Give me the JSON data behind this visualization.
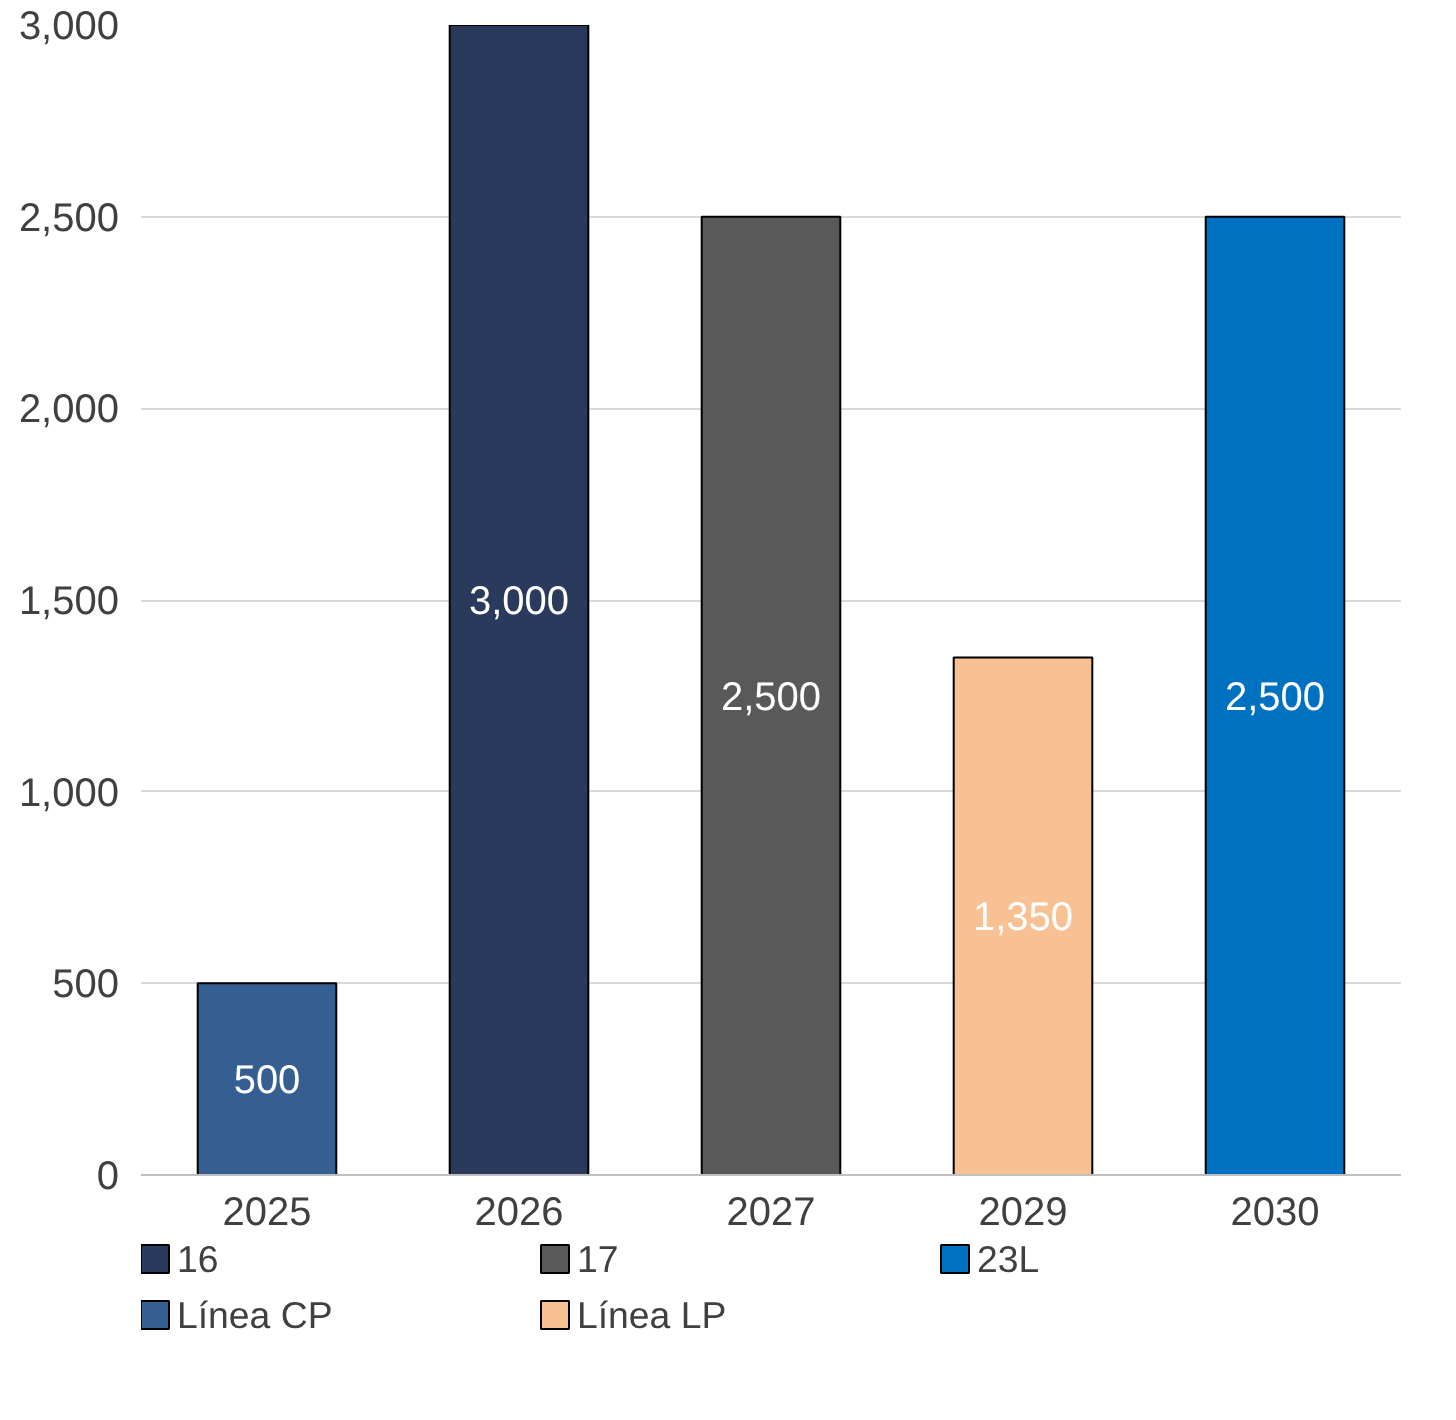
{
  "chart_data": {
    "type": "bar",
    "categories": [
      "2025",
      "2026",
      "2027",
      "2029",
      "2030"
    ],
    "series": [
      {
        "name": "16",
        "color": "#2a3a5c",
        "values": [
          null,
          3000,
          null,
          null,
          null
        ]
      },
      {
        "name": "17",
        "color": "#595959",
        "values": [
          null,
          null,
          2500,
          null,
          null
        ]
      },
      {
        "name": "23L",
        "color": "#0070c0",
        "values": [
          null,
          null,
          null,
          null,
          2500
        ]
      },
      {
        "name": "Línea CP",
        "color": "#355f91",
        "values": [
          500,
          null,
          null,
          null,
          null
        ]
      },
      {
        "name": "Línea LP",
        "color": "#f8c193",
        "values": [
          null,
          null,
          null,
          1350,
          null
        ]
      }
    ],
    "ylim": [
      0,
      3000
    ],
    "yticks": [
      0,
      500,
      {
        "value": 1000,
        "label": "1,000"
      },
      {
        "value": 1500,
        "label": "1,500"
      },
      {
        "value": 2000,
        "label": "2,000"
      },
      {
        "value": 2500,
        "label": "2,500"
      },
      {
        "value": 3000,
        "label": "3,000"
      }
    ],
    "grid": "y",
    "legend": "bottom",
    "value_labels": [
      "500",
      "3,000",
      "2,500",
      "1,350",
      "2,500"
    ]
  }
}
